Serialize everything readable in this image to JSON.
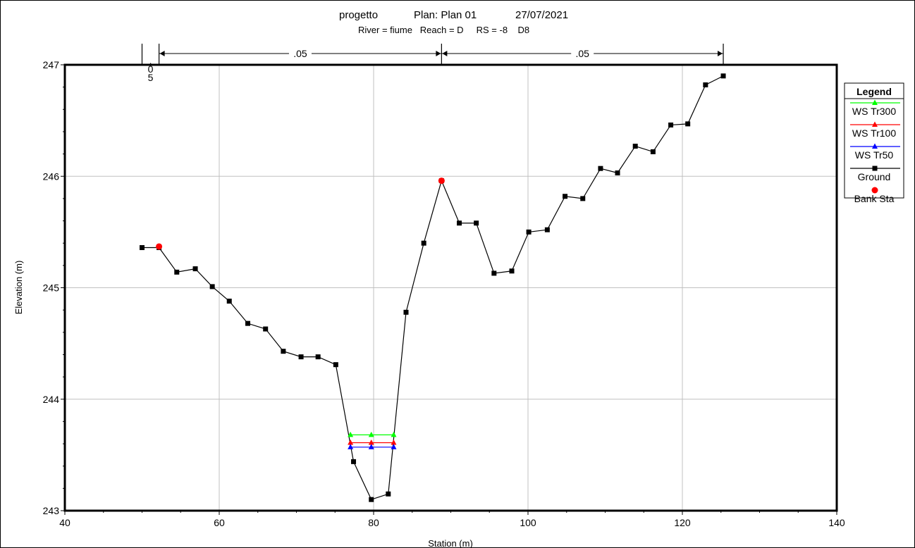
{
  "title": {
    "project": "progetto",
    "plan": "Plan: Plan 01",
    "date": "27/07/2021",
    "subtitle": "River = fiume   Reach = D     RS = -8    D8"
  },
  "chart_data": {
    "type": "line",
    "xlabel": "Station (m)",
    "ylabel": "Elevation (m)",
    "xlim": [
      40,
      140
    ],
    "ylim": [
      243,
      247
    ],
    "x_ticks": [
      40,
      60,
      80,
      100,
      120,
      140
    ],
    "y_ticks": [
      243,
      244,
      245,
      246,
      247
    ],
    "grid": true,
    "legend_position": "right",
    "legend_title": "Legend",
    "manning": {
      "breaks": [
        50.0,
        52.2,
        88.8,
        125.3
      ],
      "labels": [
        ".05",
        ".05"
      ],
      "small_zone_label": [
        ".",
        "0",
        "5"
      ]
    },
    "series": [
      {
        "name": "WS Tr300",
        "color": "#00ff00",
        "marker": "triangle",
        "x": [
          77.0,
          79.7,
          82.6
        ],
        "y": [
          243.68,
          243.68,
          243.68
        ]
      },
      {
        "name": "WS Tr100",
        "color": "#ff0000",
        "marker": "triangle",
        "x": [
          77.0,
          79.7,
          82.6
        ],
        "y": [
          243.61,
          243.61,
          243.61
        ]
      },
      {
        "name": "WS Tr50",
        "color": "#0000ff",
        "marker": "triangle",
        "x": [
          77.0,
          79.7,
          82.6
        ],
        "y": [
          243.57,
          243.57,
          243.57
        ]
      },
      {
        "name": "Ground",
        "color": "#000000",
        "marker": "square",
        "x": [
          50.0,
          52.2,
          54.5,
          56.9,
          59.1,
          61.3,
          63.7,
          66.0,
          68.3,
          70.6,
          72.8,
          75.1,
          77.4,
          79.7,
          81.9,
          84.2,
          86.5,
          88.8,
          91.1,
          93.3,
          95.6,
          97.9,
          100.1,
          102.5,
          104.8,
          107.1,
          109.4,
          111.6,
          113.9,
          116.2,
          118.5,
          120.7,
          123.0,
          125.3
        ],
        "y": [
          245.36,
          245.36,
          245.14,
          245.17,
          245.01,
          244.88,
          244.68,
          244.63,
          244.43,
          244.38,
          244.38,
          244.31,
          243.44,
          243.1,
          243.15,
          244.78,
          245.4,
          245.96,
          245.58,
          245.58,
          245.13,
          245.15,
          245.5,
          245.52,
          245.82,
          245.8,
          246.07,
          246.03,
          246.27,
          246.22,
          246.46,
          246.47,
          246.82,
          246.9
        ]
      },
      {
        "name": "Bank Sta",
        "color": "#ff0000",
        "marker": "circle",
        "x": [
          52.2,
          88.8
        ],
        "y": [
          245.37,
          245.96
        ]
      }
    ]
  }
}
